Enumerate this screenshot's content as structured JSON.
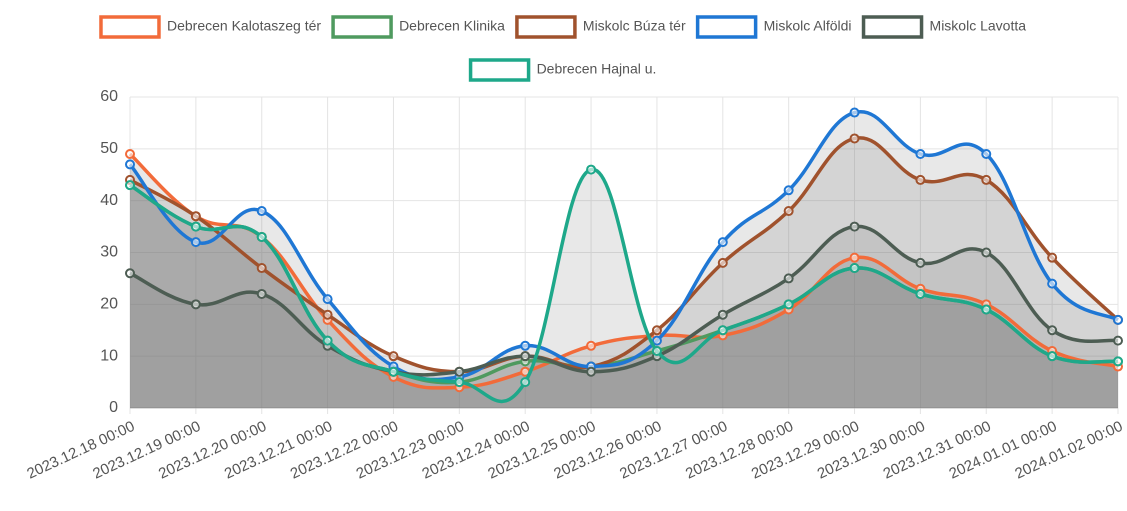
{
  "chart_data": {
    "type": "line",
    "fill": true,
    "grid": true,
    "legend": "top",
    "categories": [
      "2023.12.18 00:00",
      "2023.12.19 00:00",
      "2023.12.20 00:00",
      "2023.12.21 00:00",
      "2023.12.22 00:00",
      "2023.12.23 00:00",
      "2023.12.24 00:00",
      "2023.12.25 00:00",
      "2023.12.26 00:00",
      "2023.12.27 00:00",
      "2023.12.28 00:00",
      "2023.12.29 00:00",
      "2023.12.30 00:00",
      "2023.12.31 00:00",
      "2024.01.01 00:00",
      "2024.01.02 00:00"
    ],
    "ylim": [
      0,
      60
    ],
    "yticks": [
      0,
      10,
      20,
      30,
      40,
      50,
      60
    ],
    "series": [
      {
        "name": "Debrecen Kalotaszeg tér",
        "color": "#f26b3a",
        "values": [
          49,
          37,
          33,
          17,
          6,
          4,
          7,
          12,
          14,
          14,
          19,
          29,
          23,
          20,
          11,
          8
        ]
      },
      {
        "name": "Debrecen Klinika",
        "color": "#4f9a5f",
        "values": [
          43,
          35,
          33,
          13,
          7,
          5,
          9,
          8,
          11,
          15,
          20,
          27,
          22,
          19,
          10,
          9
        ]
      },
      {
        "name": "Miskolc Búza tér",
        "color": "#a0522d",
        "values": [
          44,
          37,
          27,
          18,
          10,
          7,
          10,
          8,
          15,
          28,
          38,
          52,
          44,
          44,
          29,
          17
        ]
      },
      {
        "name": "Miskolc Alföldi",
        "color": "#1f77d4",
        "values": [
          47,
          32,
          38,
          21,
          8,
          6,
          12,
          8,
          13,
          32,
          42,
          57,
          49,
          49,
          24,
          17
        ]
      },
      {
        "name": "Miskolc Lavotta",
        "color": "#4d5d53",
        "values": [
          26,
          20,
          22,
          12,
          7,
          7,
          10,
          7,
          10,
          18,
          25,
          35,
          28,
          30,
          15,
          13
        ]
      },
      {
        "name": "Debrecen Hajnal u.",
        "color": "#1ea88a",
        "values": [
          43,
          35,
          33,
          13,
          7,
          5,
          5,
          46,
          11,
          15,
          20,
          27,
          22,
          19,
          10,
          9
        ]
      }
    ]
  }
}
